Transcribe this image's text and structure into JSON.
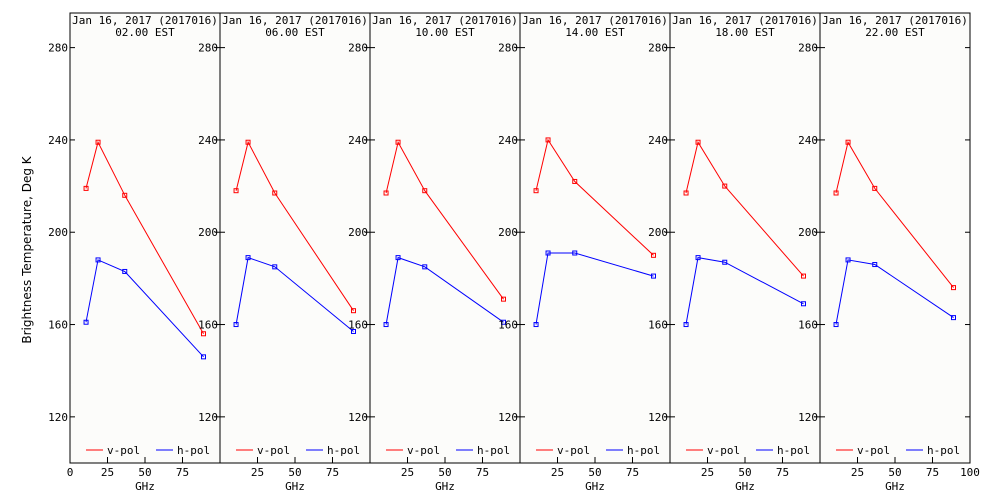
{
  "y_axis_label": "Brightness Temperature, Deg K",
  "chart_data": [
    {
      "type": "line",
      "title": "Jan 16, 2017 (2017016)",
      "subtitle": "02.00 EST",
      "xlabel": "GHz",
      "xlim": [
        0,
        100
      ],
      "ylim": [
        100,
        295
      ],
      "x_ticks": [
        "0",
        "25",
        "50",
        "75"
      ],
      "y_ticks": [
        "120",
        "160",
        "200",
        "240",
        "280"
      ],
      "grid": false,
      "legend": "bottom",
      "x": [
        10.7,
        18.7,
        36.5,
        89
      ],
      "series": [
        {
          "name": "v-pol",
          "color": "#ff0000",
          "values": [
            219,
            239,
            216,
            156
          ]
        },
        {
          "name": "h-pol",
          "color": "#0000ff",
          "values": [
            161,
            188,
            183,
            146
          ]
        }
      ]
    },
    {
      "type": "line",
      "title": "Jan 16, 2017 (2017016)",
      "subtitle": "06.00 EST",
      "xlabel": "GHz",
      "xlim": [
        0,
        100
      ],
      "ylim": [
        100,
        295
      ],
      "x_ticks": [
        "25",
        "50",
        "75"
      ],
      "y_ticks": [
        "120",
        "160",
        "200",
        "240",
        "280"
      ],
      "grid": false,
      "legend": "bottom",
      "x": [
        10.7,
        18.7,
        36.5,
        89
      ],
      "series": [
        {
          "name": "v-pol",
          "color": "#ff0000",
          "values": [
            218,
            239,
            217,
            166
          ]
        },
        {
          "name": "h-pol",
          "color": "#0000ff",
          "values": [
            160,
            189,
            185,
            157
          ]
        }
      ]
    },
    {
      "type": "line",
      "title": "Jan 16, 2017 (2017016)",
      "subtitle": "10.00 EST",
      "xlabel": "GHz",
      "xlim": [
        0,
        100
      ],
      "ylim": [
        100,
        295
      ],
      "x_ticks": [
        "25",
        "50",
        "75"
      ],
      "y_ticks": [
        "120",
        "160",
        "200",
        "240",
        "280"
      ],
      "grid": false,
      "legend": "bottom",
      "x": [
        10.7,
        18.7,
        36.5,
        89
      ],
      "series": [
        {
          "name": "v-pol",
          "color": "#ff0000",
          "values": [
            217,
            239,
            218,
            171
          ]
        },
        {
          "name": "h-pol",
          "color": "#0000ff",
          "values": [
            160,
            189,
            185,
            161
          ]
        }
      ]
    },
    {
      "type": "line",
      "title": "Jan 16, 2017 (2017016)",
      "subtitle": "14.00 EST",
      "xlabel": "GHz",
      "xlim": [
        0,
        100
      ],
      "ylim": [
        100,
        295
      ],
      "x_ticks": [
        "25",
        "50",
        "75"
      ],
      "y_ticks": [
        "120",
        "160",
        "200",
        "240",
        "280"
      ],
      "grid": false,
      "legend": "bottom",
      "x": [
        10.7,
        18.7,
        36.5,
        89
      ],
      "series": [
        {
          "name": "v-pol",
          "color": "#ff0000",
          "values": [
            218,
            240,
            222,
            190
          ]
        },
        {
          "name": "h-pol",
          "color": "#0000ff",
          "values": [
            160,
            191,
            191,
            181
          ]
        }
      ]
    },
    {
      "type": "line",
      "title": "Jan 16, 2017 (2017016)",
      "subtitle": "18.00 EST",
      "xlabel": "GHz",
      "xlim": [
        0,
        100
      ],
      "ylim": [
        100,
        295
      ],
      "x_ticks": [
        "25",
        "50",
        "75"
      ],
      "y_ticks": [
        "120",
        "160",
        "200",
        "240",
        "280"
      ],
      "grid": false,
      "legend": "bottom",
      "x": [
        10.7,
        18.7,
        36.5,
        89
      ],
      "series": [
        {
          "name": "v-pol",
          "color": "#ff0000",
          "values": [
            217,
            239,
            220,
            181
          ]
        },
        {
          "name": "h-pol",
          "color": "#0000ff",
          "values": [
            160,
            189,
            187,
            169
          ]
        }
      ]
    },
    {
      "type": "line",
      "title": "Jan 16, 2017 (2017016)",
      "subtitle": "22.00 EST",
      "xlabel": "GHz",
      "xlim": [
        0,
        100
      ],
      "ylim": [
        100,
        295
      ],
      "x_ticks": [
        "25",
        "50",
        "75",
        "100"
      ],
      "y_ticks": [
        "120",
        "160",
        "200",
        "240",
        "280"
      ],
      "grid": false,
      "legend": "bottom",
      "x": [
        10.7,
        18.7,
        36.5,
        89
      ],
      "series": [
        {
          "name": "v-pol",
          "color": "#ff0000",
          "values": [
            217,
            239,
            219,
            176
          ]
        },
        {
          "name": "h-pol",
          "color": "#0000ff",
          "values": [
            160,
            188,
            186,
            163
          ]
        }
      ]
    }
  ]
}
